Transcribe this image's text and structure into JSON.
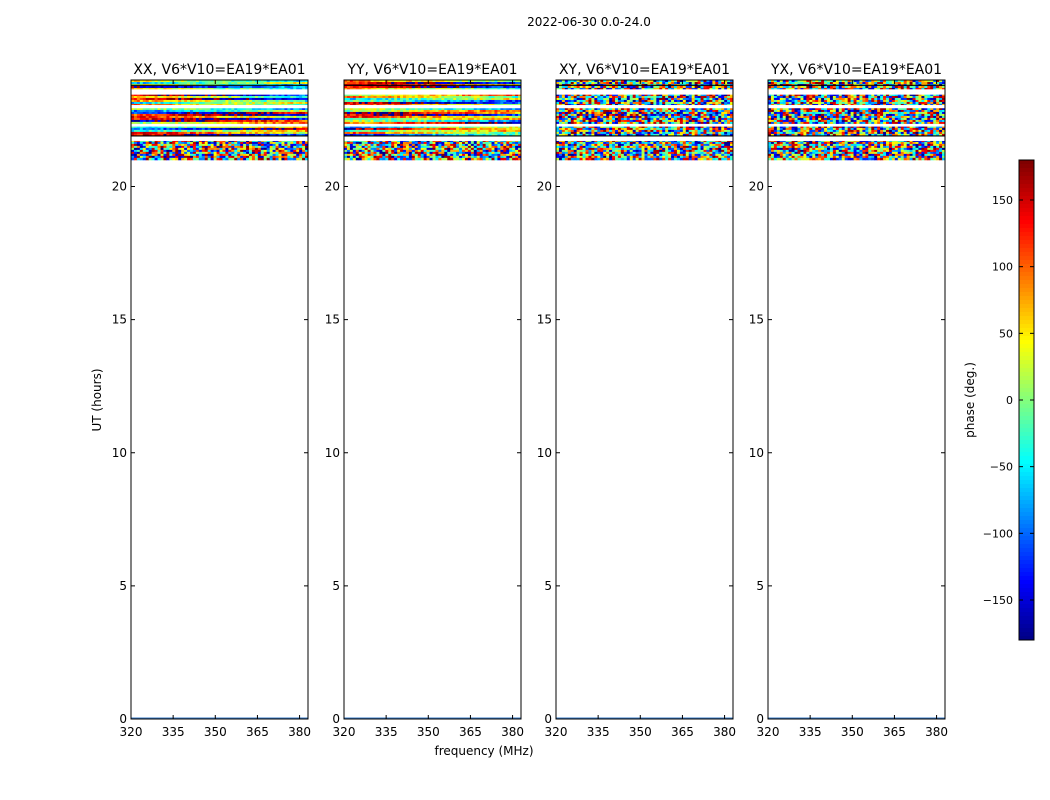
{
  "figure": {
    "suptitle": "2022-06-30 0.0-24.0",
    "ylabel": "UT (hours)",
    "xlabel": "frequency (MHz)"
  },
  "chart_data": [
    {
      "type": "heatmap",
      "title": "XX, V6*V10=EA19*EA01",
      "xlabel": "",
      "ylabel": "UT (hours)",
      "xlim": [
        320,
        383
      ],
      "ylim": [
        0,
        24
      ],
      "xticks": [
        320,
        335,
        350,
        365,
        380
      ],
      "yticks": [
        0,
        5,
        10,
        15,
        20
      ],
      "data_hours": [
        21.0,
        24.0
      ],
      "structure": "smooth"
    },
    {
      "type": "heatmap",
      "title": "YY, V6*V10=EA19*EA01",
      "xlabel": "frequency (MHz)",
      "ylabel": "",
      "xlim": [
        320,
        383
      ],
      "ylim": [
        0,
        24
      ],
      "xticks": [
        320,
        335,
        350,
        365,
        380
      ],
      "yticks": [
        0,
        5,
        10,
        15,
        20
      ],
      "data_hours": [
        21.0,
        24.0
      ],
      "structure": "smooth"
    },
    {
      "type": "heatmap",
      "title": "XY, V6*V10=EA19*EA01",
      "xlabel": "",
      "ylabel": "",
      "xlim": [
        320,
        383
      ],
      "ylim": [
        0,
        24
      ],
      "xticks": [
        320,
        335,
        350,
        365,
        380
      ],
      "yticks": [
        0,
        5,
        10,
        15,
        20
      ],
      "data_hours": [
        21.0,
        24.0
      ],
      "structure": "noise"
    },
    {
      "type": "heatmap",
      "title": "YX, V6*V10=EA19*EA01",
      "xlabel": "",
      "ylabel": "",
      "xlim": [
        320,
        383
      ],
      "ylim": [
        0,
        24
      ],
      "xticks": [
        320,
        335,
        350,
        365,
        380
      ],
      "yticks": [
        0,
        5,
        10,
        15,
        20
      ],
      "data_hours": [
        21.0,
        24.0
      ],
      "structure": "noise"
    }
  ],
  "colorbar": {
    "label": "phase (deg.)",
    "range": [
      -180,
      180
    ],
    "ticks": [
      -150,
      -100,
      -50,
      0,
      50,
      100,
      150
    ],
    "colormap": "jet"
  }
}
